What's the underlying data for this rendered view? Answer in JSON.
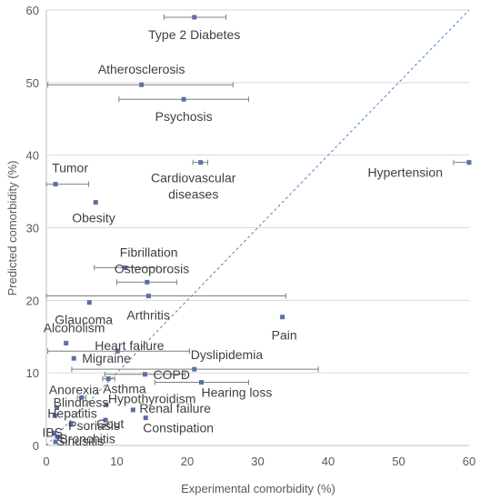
{
  "chart_data": {
    "type": "scatter",
    "title": "",
    "xlabel": "Experimental comorbidity (%)",
    "ylabel": "Predicted comorbidity (%)",
    "xlim": [
      0,
      60
    ],
    "ylim": [
      0,
      60
    ],
    "xticks": [
      "0",
      "10",
      "20",
      "30",
      "40",
      "50",
      "60"
    ],
    "yticks": [
      "0",
      "10",
      "20",
      "30",
      "40",
      "50",
      "60"
    ],
    "grid": "horizontal",
    "reference_line": "y = x",
    "points": [
      {
        "label": "Type 2 Diabetes",
        "x": 21,
        "y": 59,
        "xerr": [
          16.7,
          25.5
        ]
      },
      {
        "label": "Atherosclerosis",
        "x": 13.5,
        "y": 49.7,
        "xerr": [
          0.2,
          26.5
        ]
      },
      {
        "label": "Psychosis",
        "x": 19.5,
        "y": 47.7,
        "xerr": [
          10.3,
          28.7
        ]
      },
      {
        "label": "Cardiovascular\ndiseases",
        "x": 21.9,
        "y": 39,
        "xerr": [
          20.8,
          22.9
        ]
      },
      {
        "label": "Hypertension",
        "x": 60,
        "y": 39,
        "xerr": [
          57.8,
          60
        ]
      },
      {
        "label": "Tumor",
        "x": 1.3,
        "y": 36,
        "xerr": [
          0,
          6
        ]
      },
      {
        "label": "Obesity",
        "x": 7,
        "y": 33.5
      },
      {
        "label": "Fibrillation",
        "x": 11.2,
        "y": 24.5,
        "xerr": [
          6.8,
          15.7
        ]
      },
      {
        "label": "Osteoporosis",
        "x": 14.3,
        "y": 22.5,
        "xerr": [
          10,
          18.5
        ]
      },
      {
        "label": "Arthritis",
        "x": 14.5,
        "y": 20.6,
        "xerr": [
          0,
          34
        ]
      },
      {
        "label": "Glaucoma",
        "x": 6.1,
        "y": 19.7
      },
      {
        "label": "Pain",
        "x": 33.5,
        "y": 17.7
      },
      {
        "label": "Alcoholism",
        "x": 2.8,
        "y": 14.1
      },
      {
        "label": "Heart failure",
        "x": 10.1,
        "y": 13,
        "xerr": [
          0.2,
          20.3
        ]
      },
      {
        "label": "Migraine",
        "x": 3.9,
        "y": 12
      },
      {
        "label": "Dyslipidemia",
        "x": 21,
        "y": 10.5,
        "xerr": [
          3.6,
          38.6
        ]
      },
      {
        "label": "COPD",
        "x": 14,
        "y": 9.8,
        "xerr": [
          8.3,
          19.7
        ]
      },
      {
        "label": "Asthma",
        "x": 8.8,
        "y": 9.2,
        "xerr": [
          8,
          9.7
        ]
      },
      {
        "label": "Hearing loss",
        "x": 22,
        "y": 8.7,
        "xerr": [
          15.4,
          28.7
        ]
      },
      {
        "label": "Anorexia",
        "x": 5,
        "y": 6.6,
        "xerr": [
          4.4,
          5.6
        ]
      },
      {
        "label": "Blindness",
        "x": 1.5,
        "y": 5.2
      },
      {
        "label": "Hypothyroidism",
        "x": 8.5,
        "y": 5.6
      },
      {
        "label": "Hepatitis",
        "x": 1.2,
        "y": 4.1
      },
      {
        "label": "Renal failure",
        "x": 12.3,
        "y": 4.9
      },
      {
        "label": "Gout",
        "x": 8.4,
        "y": 3.5
      },
      {
        "label": "Constipation",
        "x": 14.1,
        "y": 3.8
      },
      {
        "label": "Psoriasis",
        "x": 3.5,
        "y": 2.9
      },
      {
        "label": "IBS",
        "x": 1.1,
        "y": 1.7
      },
      {
        "label": "Bronchitis",
        "x": 1.6,
        "y": 1.2
      },
      {
        "label": "Sinusitis",
        "x": 1.3,
        "y": 0.5
      }
    ]
  }
}
